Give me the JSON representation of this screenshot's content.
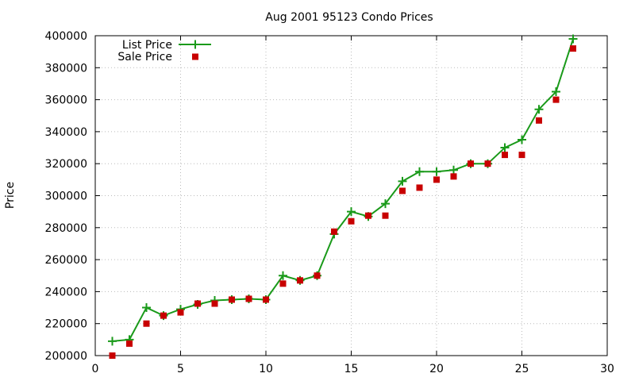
{
  "chart_data": {
    "type": "line",
    "title": "Aug 2001 95123 Condo Prices",
    "xlabel": "",
    "ylabel": "Price",
    "xlim": [
      0,
      30
    ],
    "ylim": [
      200000,
      400000
    ],
    "xticks": [
      0,
      5,
      10,
      15,
      20,
      25,
      30
    ],
    "yticks": [
      200000,
      220000,
      240000,
      260000,
      280000,
      300000,
      320000,
      340000,
      360000,
      380000,
      400000
    ],
    "grid": true,
    "legend_position": "top-left",
    "series": [
      {
        "name": "List Price",
        "style": "line-with-plus-markers",
        "color": "#1a9a1a",
        "x": [
          1,
          2,
          3,
          4,
          5,
          6,
          7,
          8,
          9,
          10,
          11,
          12,
          13,
          14,
          15,
          16,
          17,
          18,
          19,
          20,
          21,
          22,
          23,
          24,
          25,
          26,
          27,
          28
        ],
        "y": [
          209000,
          210000,
          230000,
          225000,
          229000,
          232000,
          234500,
          235000,
          235500,
          235000,
          250000,
          247000,
          250000,
          276000,
          290000,
          287000,
          295000,
          309000,
          315000,
          315000,
          316000,
          320000,
          320000,
          330000,
          335000,
          354000,
          365000,
          398000
        ]
      },
      {
        "name": "Sale Price",
        "style": "square-points",
        "color": "#c80000",
        "x": [
          1,
          2,
          3,
          4,
          5,
          6,
          7,
          8,
          9,
          10,
          11,
          12,
          13,
          14,
          15,
          16,
          17,
          18,
          19,
          20,
          21,
          22,
          23,
          24,
          25,
          26,
          27,
          28
        ],
        "y": [
          200000,
          207500,
          220000,
          225000,
          227000,
          232500,
          232500,
          235000,
          235500,
          235000,
          245000,
          247000,
          250000,
          277500,
          284000,
          287500,
          287500,
          303000,
          305000,
          310000,
          312000,
          320000,
          320000,
          325500,
          325500,
          347000,
          360000,
          392000
        ]
      }
    ]
  }
}
